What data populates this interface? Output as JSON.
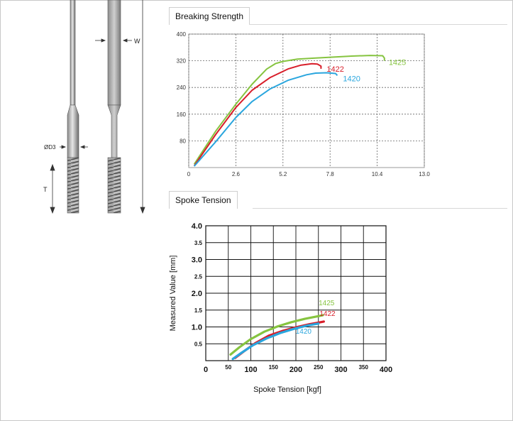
{
  "drawing": {
    "label_w": "W",
    "label_od3": "ØD3",
    "label_t": "T"
  },
  "sections": {
    "breaking_strength_tab": "Breaking Strength",
    "spoke_tension_tab": "Spoke Tension"
  },
  "colors": {
    "s1425": "#86c440",
    "s1422": "#d81e2a",
    "s1420": "#2aa6de"
  },
  "chart_data": [
    {
      "type": "line",
      "title": "Breaking Strength",
      "xlabel": "",
      "ylabel": "",
      "xlim": [
        0,
        13.0
      ],
      "ylim": [
        0,
        400
      ],
      "xticks": [
        "0",
        "2.6",
        "5.2",
        "7.8",
        "10.4",
        "13.0"
      ],
      "yticks": [
        "80",
        "160",
        "240",
        "320",
        "400"
      ],
      "grid": true,
      "series": [
        {
          "name": "1425",
          "color": "#86c440",
          "x": [
            0.3,
            1.5,
            2.6,
            3.5,
            4.3,
            4.8,
            5.2,
            6.0,
            7.0,
            8.0,
            9.0,
            10.0,
            10.7,
            10.8,
            10.8
          ],
          "y": [
            10,
            110,
            190,
            250,
            295,
            312,
            318,
            325,
            328,
            331,
            334,
            336,
            335,
            328,
            320
          ]
        },
        {
          "name": "1422",
          "color": "#d81e2a",
          "x": [
            0.3,
            1.5,
            2.6,
            3.5,
            4.5,
            5.5,
            6.2,
            6.8,
            7.1,
            7.3,
            7.3
          ],
          "y": [
            5,
            100,
            180,
            232,
            270,
            296,
            307,
            311,
            310,
            304,
            296
          ]
        },
        {
          "name": "1420",
          "color": "#2aa6de",
          "x": [
            0.3,
            1.5,
            2.6,
            3.5,
            4.5,
            5.5,
            6.5,
            7.0,
            7.6,
            8.1,
            8.2
          ],
          "y": [
            4,
            78,
            150,
            198,
            236,
            262,
            278,
            283,
            284,
            282,
            276
          ]
        }
      ]
    },
    {
      "type": "line",
      "title": "Spoke Tension",
      "xlabel": "Spoke Tension [kgf]",
      "ylabel": "Measured Value [mm]",
      "xlim": [
        0,
        400
      ],
      "ylim": [
        0,
        4.0
      ],
      "xticks": [
        "0",
        "50",
        "100",
        "150",
        "200",
        "250",
        "300",
        "350",
        "400"
      ],
      "yticks": [
        "0.5",
        "1.0",
        "1.5",
        "2.0",
        "2.5",
        "3.0",
        "3.5",
        "4.0"
      ],
      "grid": true,
      "series": [
        {
          "name": "1425",
          "color": "#86c440",
          "x": [
            55,
            75,
            100,
            130,
            160,
            190,
            220,
            250,
            260
          ],
          "y": [
            0.18,
            0.4,
            0.64,
            0.86,
            1.02,
            1.14,
            1.24,
            1.32,
            1.35
          ]
        },
        {
          "name": "1422",
          "color": "#d81e2a",
          "x": [
            65,
            85,
            110,
            140,
            170,
            200,
            230,
            255,
            262
          ],
          "y": [
            0.08,
            0.28,
            0.52,
            0.74,
            0.88,
            0.99,
            1.08,
            1.14,
            1.16
          ]
        },
        {
          "name": "1420",
          "color": "#2aa6de",
          "x": [
            60,
            80,
            105,
            135,
            165,
            195,
            225,
            250
          ],
          "y": [
            0.05,
            0.24,
            0.46,
            0.66,
            0.82,
            0.94,
            1.04,
            1.1
          ]
        }
      ]
    }
  ]
}
